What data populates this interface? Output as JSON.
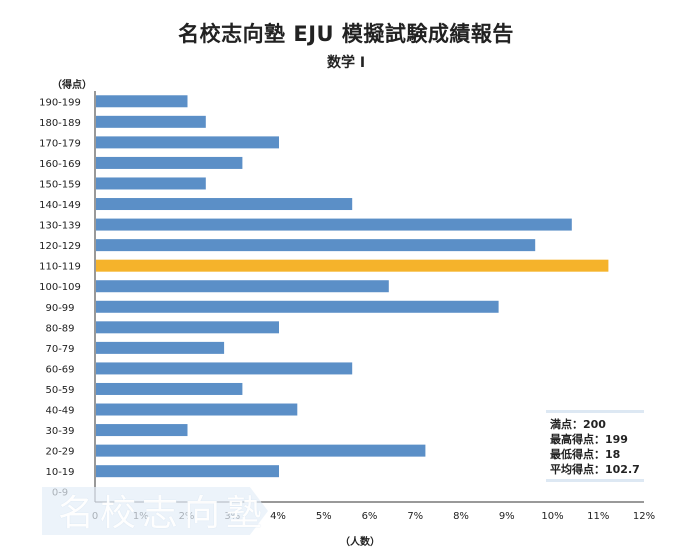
{
  "header": {
    "title": "名校志向塾 EJU 模擬試験成績報告",
    "subtitle": "数学 I"
  },
  "chart_data": {
    "type": "bar",
    "orientation": "horizontal",
    "title": "名校志向塾 EJU 模擬試験成績報告",
    "subtitle": "数学 I",
    "ylabel": "（得点）",
    "xlabel": "（人数）",
    "xlim": [
      0,
      12
    ],
    "x_tick_labels": [
      "0",
      "1%",
      "2%",
      "3%",
      "4%",
      "5%",
      "6%",
      "7%",
      "8%",
      "9%",
      "10%",
      "11%",
      "12%"
    ],
    "categories": [
      "190-199",
      "180-189",
      "170-179",
      "160-169",
      "150-159",
      "140-149",
      "130-139",
      "120-129",
      "110-119",
      "100-109",
      "90-99",
      "80-89",
      "70-79",
      "60-69",
      "50-59",
      "40-49",
      "30-39",
      "20-29",
      "10-19",
      "0-9"
    ],
    "values": [
      2.0,
      2.4,
      4.0,
      3.2,
      2.4,
      5.6,
      10.4,
      9.6,
      11.2,
      6.4,
      8.8,
      4.0,
      2.8,
      5.6,
      3.2,
      4.4,
      2.0,
      7.2,
      4.0,
      0
    ],
    "highlight_category": "110-119",
    "colors": {
      "bar": "#5b8fc7",
      "highlight": "#f5b32b",
      "axis": "#333333"
    }
  },
  "stats": {
    "full_score": "満点：200",
    "max_score": "最高得点：199",
    "min_score": "最低得点：18",
    "average": "平均得点：102.7"
  },
  "watermark": "名校志向塾"
}
